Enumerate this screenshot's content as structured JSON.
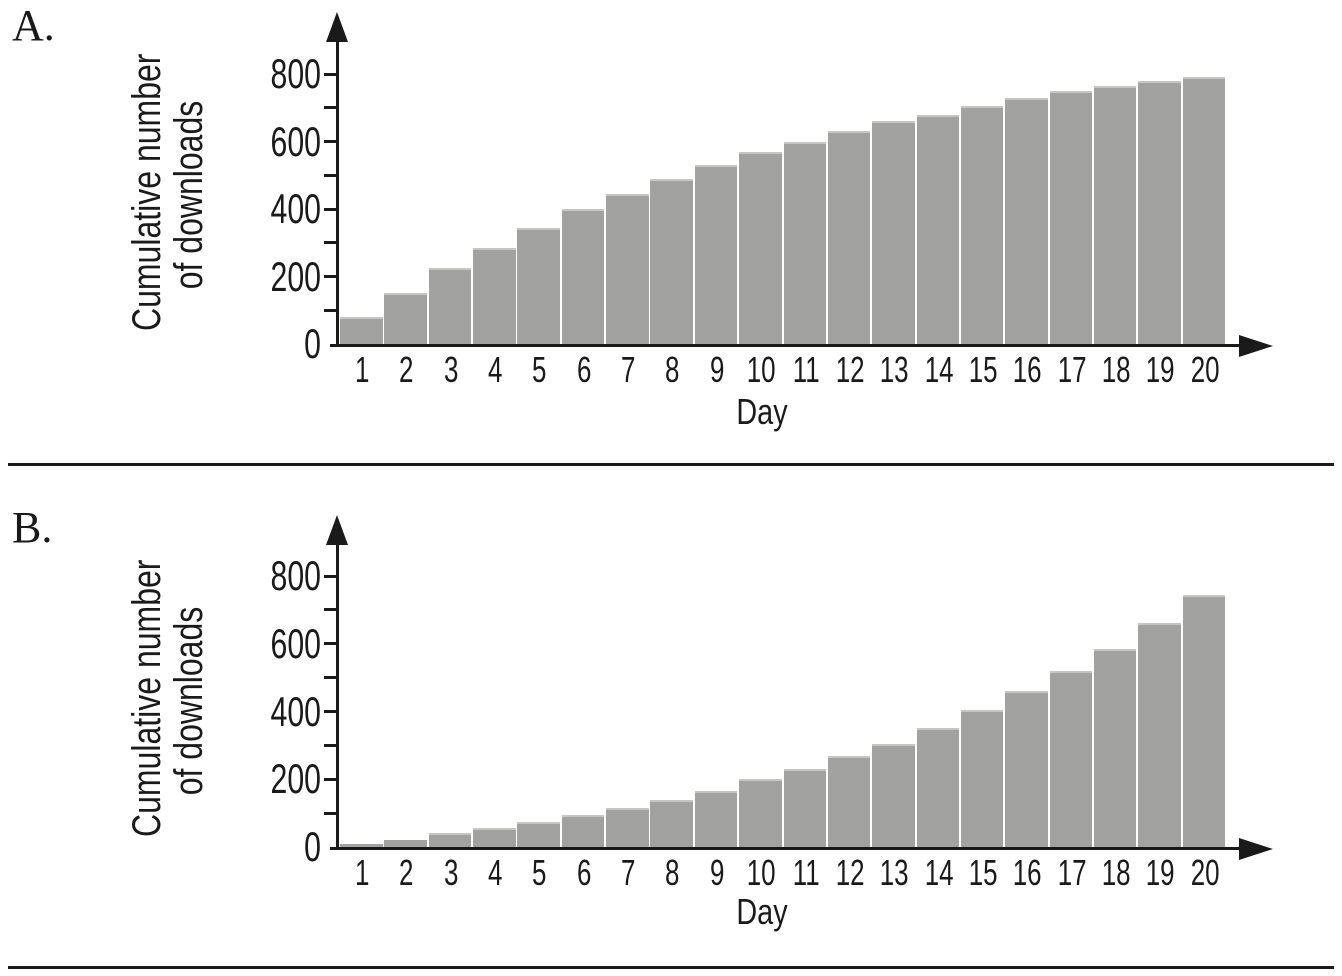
{
  "page": {
    "background": "#ffffff"
  },
  "chart_data": [
    {
      "type": "bar",
      "panel_label": "A.",
      "title": "",
      "xlabel": "Day",
      "ylabel": "Cumulative number of downloads",
      "ylabel_lines": [
        "Cumulative number",
        "of downloads"
      ],
      "categories": [
        1,
        2,
        3,
        4,
        5,
        6,
        7,
        8,
        9,
        10,
        11,
        12,
        13,
        14,
        15,
        16,
        17,
        18,
        19,
        20
      ],
      "values": [
        80,
        150,
        225,
        285,
        345,
        400,
        445,
        490,
        530,
        570,
        600,
        630,
        660,
        680,
        705,
        730,
        750,
        765,
        780,
        790
      ],
      "ylim": [
        0,
        900
      ],
      "yticks_labeled": [
        0,
        200,
        400,
        600,
        800
      ],
      "yticks_minor": [
        100,
        300,
        500,
        700
      ],
      "grid": false,
      "legend": null,
      "bar_color": "#a2a2a0",
      "bar_top_highlight": "#c6c6c4",
      "axis_color": "#1a1a1a",
      "text_color": "#1a1a1a"
    },
    {
      "type": "bar",
      "panel_label": "B.",
      "title": "",
      "xlabel": "Day",
      "ylabel": "Cumulative number of downloads",
      "ylabel_lines": [
        "Cumulative number",
        "of downloads"
      ],
      "categories": [
        1,
        2,
        3,
        4,
        5,
        6,
        7,
        8,
        9,
        10,
        11,
        12,
        13,
        14,
        15,
        16,
        17,
        18,
        19,
        20
      ],
      "values": [
        10,
        20,
        40,
        55,
        75,
        95,
        115,
        140,
        165,
        200,
        230,
        270,
        305,
        350,
        405,
        460,
        520,
        585,
        660,
        745
      ],
      "ylim": [
        0,
        900
      ],
      "yticks_labeled": [
        0,
        200,
        400,
        600,
        800
      ],
      "yticks_minor": [
        100,
        300,
        500,
        700
      ],
      "grid": false,
      "legend": null,
      "bar_color": "#a2a2a0",
      "bar_top_highlight": "#c6c6c4",
      "axis_color": "#1a1a1a",
      "text_color": "#1a1a1a"
    }
  ]
}
